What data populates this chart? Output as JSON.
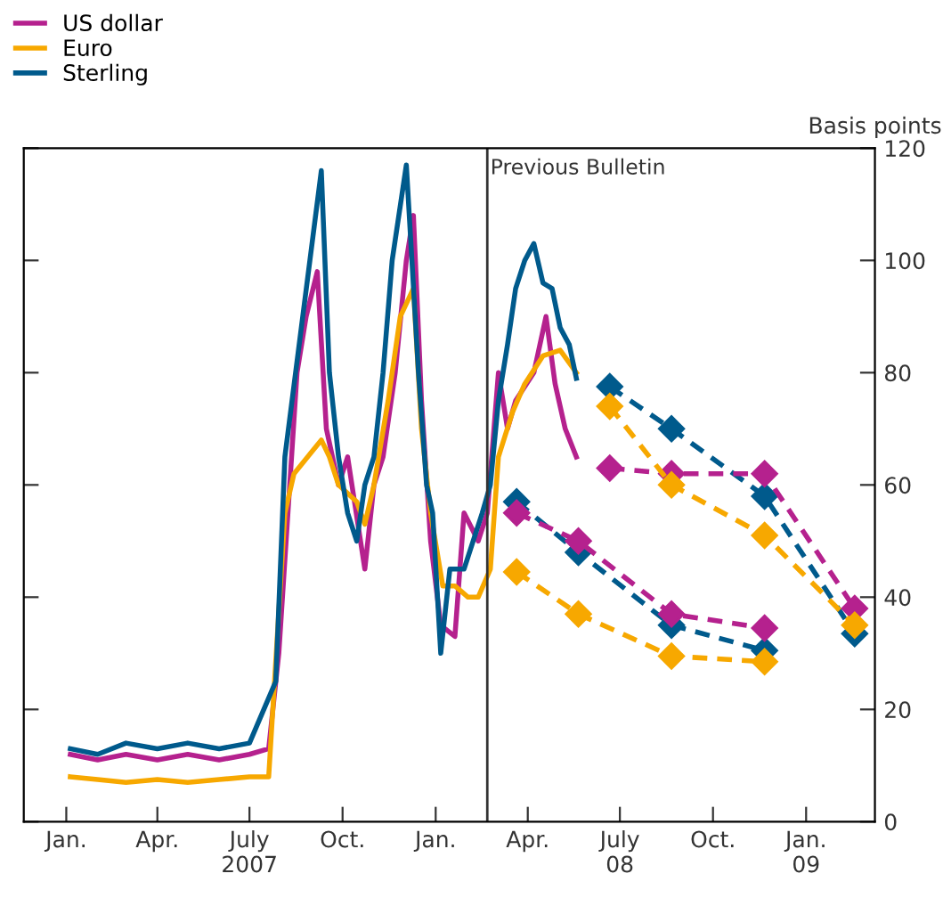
{
  "chart_data": {
    "type": "line",
    "ylabel": "Basis points",
    "xlim": [
      "2006-11-20",
      "2009-03-10"
    ],
    "xticks": [
      {
        "value": "2007-01-01",
        "label": "Jan."
      },
      {
        "value": "2007-04-01",
        "label": "Apr."
      },
      {
        "value": "2007-07-01",
        "label": "July\n2007"
      },
      {
        "value": "2007-10-01",
        "label": "Oct."
      },
      {
        "value": "2008-01-01",
        "label": "Jan."
      },
      {
        "value": "2008-04-01",
        "label": "Apr."
      },
      {
        "value": "2008-07-01",
        "label": "July\n08"
      },
      {
        "value": "2008-10-01",
        "label": "Oct."
      },
      {
        "value": "2009-01-01",
        "label": "Jan.\n09"
      }
    ],
    "ylim": [
      0,
      120
    ],
    "yticks": [
      0,
      20,
      40,
      60,
      80,
      100,
      120
    ],
    "grid": false,
    "legend": "top left",
    "ref_lines": [
      {
        "axis": "x",
        "value": "2008-02-21",
        "label": "Previous Bulletin",
        "color": "#333333"
      }
    ],
    "series": [
      {
        "name": "US dollar",
        "color": "#b5218e",
        "x": [
          "2007-01-05",
          "2007-02-01",
          "2007-03-01",
          "2007-04-01",
          "2007-05-01",
          "2007-06-01",
          "2007-07-01",
          "2007-07-20",
          "2007-07-30",
          "2007-08-08",
          "2007-08-17",
          "2007-08-26",
          "2007-09-06",
          "2007-09-15",
          "2007-09-27",
          "2007-10-06",
          "2007-10-23",
          "2007-11-01",
          "2007-11-10",
          "2007-11-22",
          "2007-12-03",
          "2007-12-10",
          "2007-12-18",
          "2007-12-27",
          "2008-01-06",
          "2008-01-20",
          "2008-01-29",
          "2008-02-12",
          "2008-02-21",
          "2008-03-03",
          "2008-03-12",
          "2008-03-20",
          "2008-04-07",
          "2008-04-19",
          "2008-04-28",
          "2008-05-08",
          "2008-05-19"
        ],
        "values": [
          12,
          11,
          12,
          11,
          12,
          11,
          12,
          13,
          30,
          55,
          80,
          90,
          98,
          70,
          60,
          65,
          45,
          60,
          65,
          80,
          100,
          108,
          75,
          50,
          35,
          33,
          55,
          50,
          55,
          80,
          70,
          75,
          80,
          90,
          78,
          70,
          65
        ]
      },
      {
        "name": "Euro",
        "color": "#f7a800",
        "x": [
          "2007-01-05",
          "2007-02-01",
          "2007-03-01",
          "2007-04-01",
          "2007-05-01",
          "2007-06-01",
          "2007-07-01",
          "2007-07-20",
          "2007-08-05",
          "2007-08-14",
          "2007-09-01",
          "2007-09-10",
          "2007-09-18",
          "2007-09-27",
          "2007-10-15",
          "2007-10-23",
          "2007-11-01",
          "2007-11-15",
          "2007-11-27",
          "2007-12-10",
          "2007-12-18",
          "2007-12-27",
          "2008-01-08",
          "2008-01-20",
          "2008-02-02",
          "2008-02-12",
          "2008-02-24",
          "2008-03-03",
          "2008-03-17",
          "2008-03-29",
          "2008-04-16",
          "2008-05-03",
          "2008-05-19"
        ],
        "values": [
          8,
          7.5,
          7,
          7.5,
          7,
          7.5,
          8,
          8,
          55,
          62,
          66,
          68,
          65,
          60,
          57,
          53,
          60,
          75,
          90,
          95,
          70,
          55,
          42,
          42,
          40,
          40,
          45,
          65,
          73,
          78,
          83,
          84,
          80
        ]
      },
      {
        "name": "Sterling",
        "color": "#005a8c",
        "x": [
          "2007-01-05",
          "2007-02-01",
          "2007-03-01",
          "2007-04-01",
          "2007-05-01",
          "2007-06-01",
          "2007-07-01",
          "2007-07-27",
          "2007-08-05",
          "2007-09-10",
          "2007-09-18",
          "2007-09-27",
          "2007-10-06",
          "2007-10-15",
          "2007-10-23",
          "2007-11-01",
          "2007-11-10",
          "2007-11-19",
          "2007-12-03",
          "2007-12-15",
          "2007-12-23",
          "2007-12-29",
          "2008-01-06",
          "2008-01-15",
          "2008-01-29",
          "2008-02-07",
          "2008-02-16",
          "2008-02-24",
          "2008-03-03",
          "2008-03-12",
          "2008-03-20",
          "2008-03-29",
          "2008-04-07",
          "2008-04-16",
          "2008-04-25",
          "2008-05-03",
          "2008-05-12",
          "2008-05-19"
        ],
        "values": [
          13,
          12,
          14,
          13,
          14,
          13,
          14,
          25,
          65,
          116,
          80,
          65,
          55,
          50,
          60,
          65,
          80,
          100,
          117,
          80,
          60,
          55,
          30,
          45,
          45,
          50,
          55,
          60,
          75,
          85,
          95,
          100,
          103,
          96,
          95,
          88,
          85,
          79
        ]
      },
      {
        "color": "#005a8c",
        "marker": "diamond",
        "line_style": "dashed",
        "x": [
          "2008-03-21",
          "2008-05-21",
          "2008-08-21",
          "2008-11-21"
        ],
        "values": [
          57,
          48,
          35,
          30.5
        ]
      },
      {
        "color": "#b5218e",
        "marker": "diamond",
        "line_style": "dashed",
        "x": [
          "2008-03-21",
          "2008-05-21",
          "2008-08-21",
          "2008-11-21"
        ],
        "values": [
          55,
          50,
          37,
          34.5
        ]
      },
      {
        "color": "#f7a800",
        "marker": "diamond",
        "line_style": "dashed",
        "x": [
          "2008-03-21",
          "2008-05-21",
          "2008-08-21",
          "2008-11-21"
        ],
        "values": [
          44.5,
          37,
          29.5,
          28.5
        ]
      },
      {
        "color": "#005a8c",
        "marker": "diamond",
        "line_style": "dashed",
        "x": [
          "2008-06-21",
          "2008-08-21",
          "2008-11-21",
          "2009-02-18"
        ],
        "values": [
          77.5,
          70,
          58,
          33.5
        ]
      },
      {
        "color": "#b5218e",
        "marker": "diamond",
        "line_style": "dashed",
        "x": [
          "2008-06-21",
          "2008-08-21",
          "2008-11-21",
          "2009-02-18"
        ],
        "values": [
          63,
          62,
          62,
          38
        ]
      },
      {
        "color": "#f7a800",
        "marker": "diamond",
        "line_style": "dashed",
        "x": [
          "2008-06-21",
          "2008-08-21",
          "2008-11-21",
          "2009-02-18"
        ],
        "values": [
          74,
          60,
          51,
          35
        ]
      }
    ]
  }
}
